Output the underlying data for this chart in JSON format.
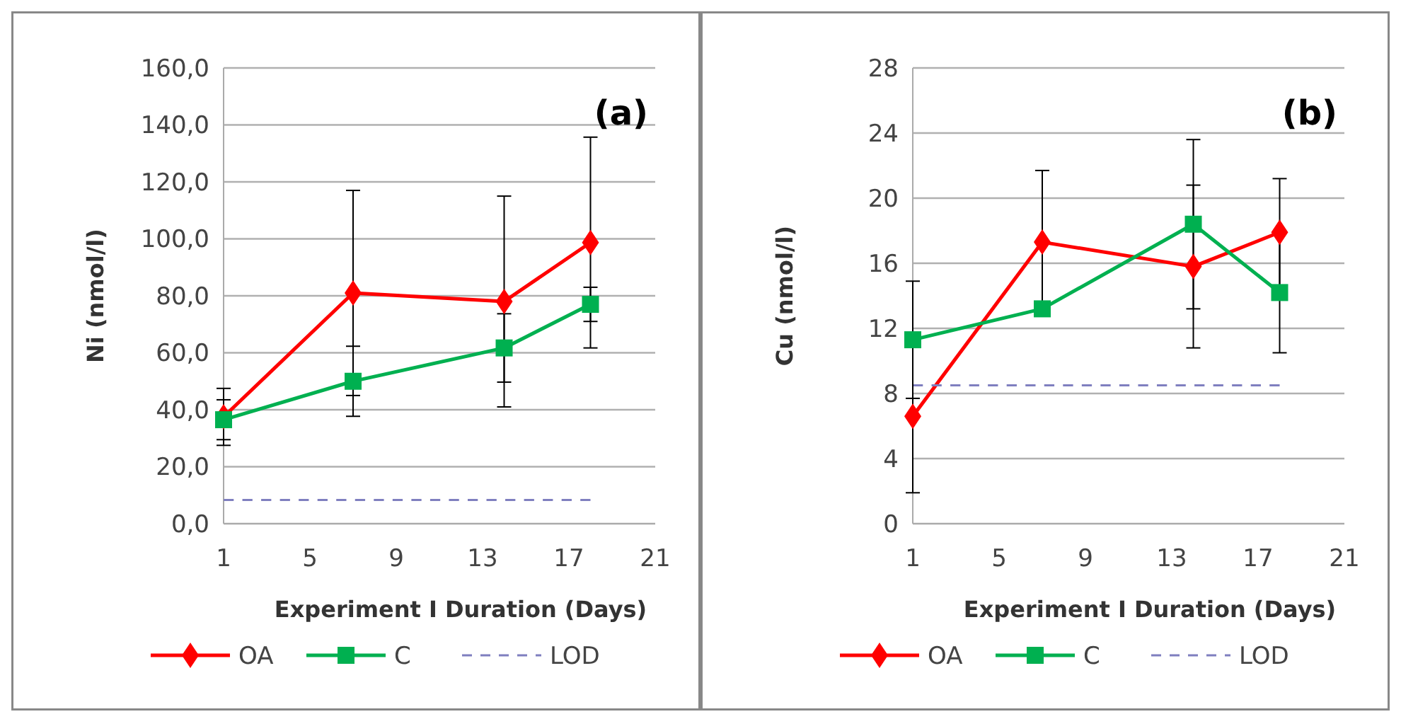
{
  "chart_data": [
    {
      "type": "line",
      "xlabel": "Experiment I Duration (Days)",
      "ylabel": "Ni (nmol/l)",
      "xlim": [
        1,
        21
      ],
      "xticks": [
        1,
        5,
        9,
        13,
        17,
        21
      ],
      "ylim": [
        0,
        160
      ],
      "yticks": [
        {
          "value": 0,
          "label": "0,0"
        },
        {
          "value": 20,
          "label": "20,0"
        },
        {
          "value": 40,
          "label": "40,0"
        },
        {
          "value": 60,
          "label": "60,0"
        },
        {
          "value": 80,
          "label": "80,0"
        },
        {
          "value": 100,
          "label": "100,0"
        },
        {
          "value": 120,
          "label": "120,0"
        },
        {
          "value": 140,
          "label": "140,0"
        },
        {
          "value": 160,
          "label": "160,0"
        }
      ],
      "grid": "y",
      "legend": "bottom",
      "annotations": [
        "(a)"
      ],
      "series": [
        {
          "name": "OA",
          "color": "#ff0000",
          "x": [
            1,
            7,
            14,
            18
          ],
          "values": [
            37.5,
            81,
            78,
            98.7
          ],
          "errors": [
            10,
            36,
            37,
            37
          ],
          "marker": "diamond",
          "line_style": "solid"
        },
        {
          "name": "C",
          "color": "#00b050",
          "x": [
            1,
            7,
            14,
            18
          ],
          "values": [
            36.5,
            50,
            61.7,
            77
          ],
          "errors": [
            7,
            12.3,
            12,
            6
          ],
          "marker": "square",
          "line_style": "solid"
        },
        {
          "name": "LOD",
          "color": "#7f7fbf",
          "x": [
            1,
            18
          ],
          "values": [
            8.3,
            8.3
          ],
          "marker": "none",
          "line_style": "dashed"
        }
      ]
    },
    {
      "type": "line",
      "xlabel": "Experiment I Duration (Days)",
      "ylabel": "Cu (nmol/l)",
      "xlim": [
        1,
        21
      ],
      "xticks": [
        1,
        5,
        9,
        13,
        17,
        21
      ],
      "ylim": [
        0,
        28
      ],
      "yticks": [
        0,
        4,
        8,
        12,
        16,
        20,
        24,
        28
      ],
      "grid": "y",
      "legend": "bottom",
      "annotations": [
        "(b)"
      ],
      "series": [
        {
          "name": "OA",
          "color": "#ff0000",
          "x": [
            1,
            7,
            14,
            18
          ],
          "values": [
            6.6,
            17.3,
            15.8,
            17.9
          ],
          "errors": [
            4.7,
            4.4,
            5,
            3.3
          ],
          "marker": "diamond",
          "line_style": "solid"
        },
        {
          "name": "C",
          "color": "#00b050",
          "x": [
            1,
            7,
            14,
            18
          ],
          "values": [
            11.3,
            13.2,
            18.4,
            14.2
          ],
          "errors": [
            3.6,
            null,
            5.2,
            3.7
          ],
          "marker": "square",
          "line_style": "solid"
        },
        {
          "name": "LOD",
          "color": "#7f7fbf",
          "x": [
            1,
            18
          ],
          "values": [
            8.5,
            8.5
          ],
          "marker": "none",
          "line_style": "dashed"
        }
      ]
    }
  ]
}
